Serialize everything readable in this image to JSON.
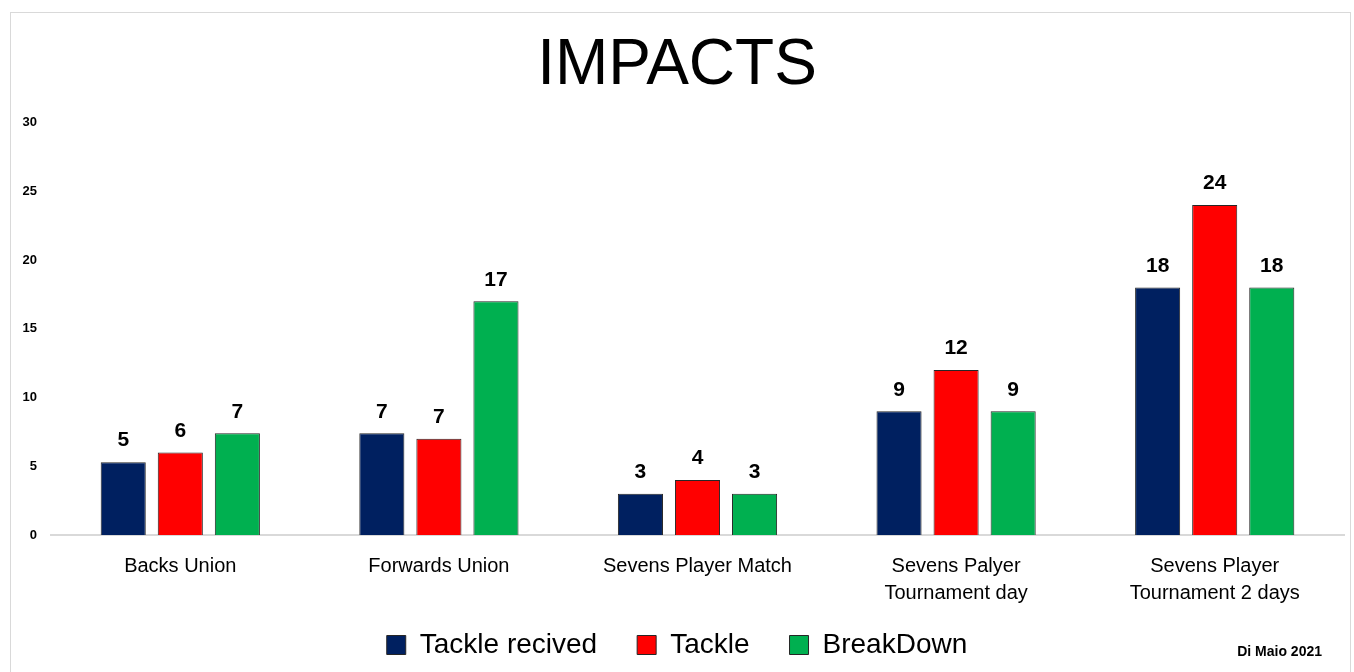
{
  "chart_data": {
    "type": "bar",
    "title": "IMPACTS",
    "categories": [
      "Backs Union",
      "Forwards Union",
      "Sevens Player Match",
      "Sevens Palyer Tournament day",
      "Sevens Player Tournament 2 days"
    ],
    "series": [
      {
        "name": "Tackle recived",
        "color": "#002060",
        "values": [
          5.3,
          7.4,
          3,
          9,
          18
        ],
        "value_labels": [
          "5",
          "7",
          "3",
          "9",
          "18"
        ]
      },
      {
        "name": "Tackle",
        "color": "#ff0000",
        "values": [
          6,
          7,
          4,
          12,
          24
        ],
        "value_labels": [
          "6",
          "7",
          "4",
          "12",
          "24"
        ]
      },
      {
        "name": "BreakDown",
        "color": "#00b050",
        "values": [
          7.4,
          17,
          3,
          9,
          18
        ],
        "value_labels": [
          "7",
          "17",
          "3",
          "9",
          "18"
        ]
      }
    ],
    "ylim": [
      0,
      30
    ],
    "yticks": [
      0,
      5,
      10,
      15,
      20,
      25,
      30
    ],
    "legend": "bottom",
    "annotations": [
      "Di Maio 2021"
    ]
  }
}
